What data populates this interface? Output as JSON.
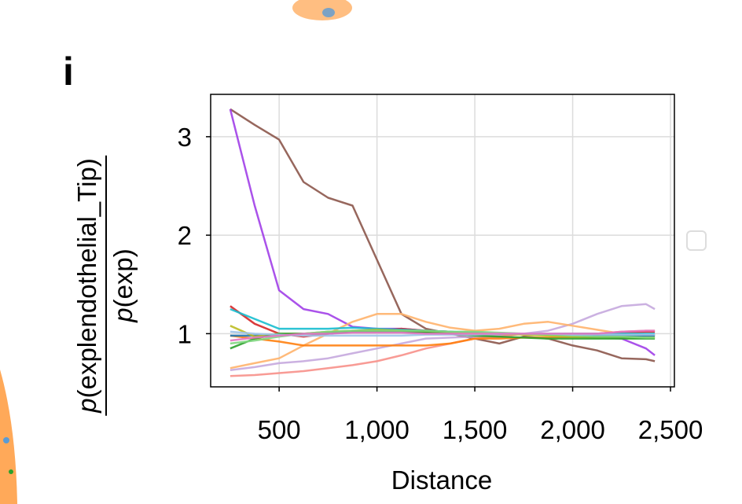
{
  "panel_label": "i",
  "chart_data": {
    "type": "line",
    "xlabel": "Distance",
    "ylabel_numerator_italic": "p",
    "ylabel_numerator": "(explendothelial_Tip)",
    "ylabel_denominator_italic": "p",
    "ylabel_denominator": "(exp)",
    "xlim": [
      150,
      2520
    ],
    "ylim": [
      0.46,
      3.43
    ],
    "xticks": [
      500,
      1000,
      1500,
      2000,
      2500
    ],
    "xtick_labels": [
      "500",
      "1,000",
      "1,500",
      "2,000",
      "2,500"
    ],
    "yticks": [
      1,
      2,
      3
    ],
    "ytick_labels": [
      "1",
      "2",
      "3"
    ],
    "grid": true,
    "legend": "right (empty)",
    "x": [
      250,
      375,
      500,
      625,
      750,
      875,
      1000,
      1125,
      1250,
      1375,
      1500,
      1625,
      1750,
      1875,
      2000,
      2125,
      2250,
      2375,
      2420
    ],
    "series": [
      {
        "color": "#8c564b",
        "values": [
          3.28,
          3.12,
          2.97,
          2.54,
          2.38,
          2.3,
          1.75,
          1.2,
          1.05,
          1.0,
          0.95,
          0.9,
          0.97,
          0.95,
          0.88,
          0.83,
          0.75,
          0.74,
          0.72
        ]
      },
      {
        "color": "#a13fe8",
        "values": [
          3.28,
          2.3,
          1.44,
          1.25,
          1.2,
          1.07,
          1.05,
          1.05,
          1.03,
          1.02,
          1.0,
          1.0,
          1.0,
          1.0,
          0.98,
          0.97,
          0.95,
          0.85,
          0.78
        ]
      },
      {
        "color": "#c5a8de",
        "values": [
          0.63,
          0.66,
          0.7,
          0.72,
          0.75,
          0.8,
          0.85,
          0.9,
          0.95,
          0.96,
          0.97,
          0.98,
          1.0,
          1.03,
          1.1,
          1.2,
          1.28,
          1.3,
          1.25
        ]
      },
      {
        "color": "#f7908a",
        "values": [
          0.57,
          0.58,
          0.6,
          0.62,
          0.65,
          0.68,
          0.72,
          0.78,
          0.85,
          0.9,
          0.95,
          0.97,
          1.0,
          1.0,
          1.0,
          1.0,
          1.02,
          1.03,
          1.03
        ]
      },
      {
        "color": "#ffb36b",
        "values": [
          0.65,
          0.7,
          0.75,
          0.88,
          1.0,
          1.12,
          1.2,
          1.2,
          1.12,
          1.06,
          1.03,
          1.05,
          1.1,
          1.12,
          1.08,
          1.04,
          1.0,
          0.99,
          0.98
        ]
      },
      {
        "color": "#ff7f0e",
        "values": [
          0.98,
          0.95,
          0.92,
          0.88,
          0.88,
          0.88,
          0.88,
          0.88,
          0.88,
          0.9,
          0.95,
          0.95,
          0.96,
          0.96,
          0.97,
          0.97,
          0.98,
          0.98,
          0.98
        ]
      },
      {
        "color": "#d62728",
        "values": [
          1.28,
          1.1,
          1.0,
          0.97,
          1.0,
          1.02,
          1.03,
          1.05,
          1.03,
          1.02,
          1.0,
          1.0,
          1.0,
          1.0,
          1.0,
          1.0,
          1.01,
          1.02,
          1.02
        ]
      },
      {
        "color": "#17becf",
        "values": [
          1.25,
          1.15,
          1.05,
          1.05,
          1.05,
          1.06,
          1.05,
          1.04,
          1.03,
          1.02,
          1.01,
          1.0,
          1.0,
          1.0,
          1.0,
          1.0,
          1.0,
          1.0,
          1.0
        ]
      },
      {
        "color": "#1f77b4",
        "values": [
          0.98,
          0.98,
          0.99,
          1.0,
          1.0,
          1.02,
          1.02,
          1.02,
          1.01,
          1.0,
          1.0,
          1.0,
          1.0,
          0.99,
          0.98,
          0.98,
          0.98,
          0.98,
          0.98
        ]
      },
      {
        "color": "#bcbd22",
        "values": [
          1.08,
          0.97,
          1.0,
          1.0,
          1.02,
          1.03,
          1.04,
          1.03,
          1.02,
          1.01,
          1.0,
          1.0,
          0.99,
          0.98,
          0.97,
          0.96,
          0.96,
          0.96,
          0.96
        ]
      },
      {
        "color": "#2ca02c",
        "values": [
          0.85,
          0.95,
          1.0,
          1.0,
          1.01,
          1.02,
          1.02,
          1.02,
          1.01,
          1.0,
          0.98,
          0.97,
          0.96,
          0.95,
          0.95,
          0.95,
          0.95,
          0.95,
          0.95
        ]
      },
      {
        "color": "#7fd67f",
        "values": [
          0.9,
          0.93,
          0.97,
          1.0,
          1.02,
          1.03,
          1.03,
          1.03,
          1.03,
          1.02,
          1.02,
          1.01,
          1.0,
          0.99,
          0.98,
          0.97,
          0.97,
          0.96,
          0.96
        ]
      },
      {
        "color": "#9fc3e8",
        "values": [
          1.02,
          1.0,
          0.99,
          0.98,
          0.98,
          0.98,
          0.98,
          0.98,
          0.99,
          0.99,
          0.99,
          1.0,
          1.0,
          1.0,
          0.99,
          0.99,
          0.99,
          0.99,
          0.99
        ]
      },
      {
        "color": "#e377c2",
        "values": [
          0.93,
          0.96,
          0.98,
          1.0,
          1.0,
          1.01,
          1.01,
          1.01,
          1.0,
          1.0,
          1.0,
          1.0,
          1.0,
          1.0,
          1.0,
          1.0,
          1.02,
          1.03,
          1.03
        ]
      }
    ]
  }
}
